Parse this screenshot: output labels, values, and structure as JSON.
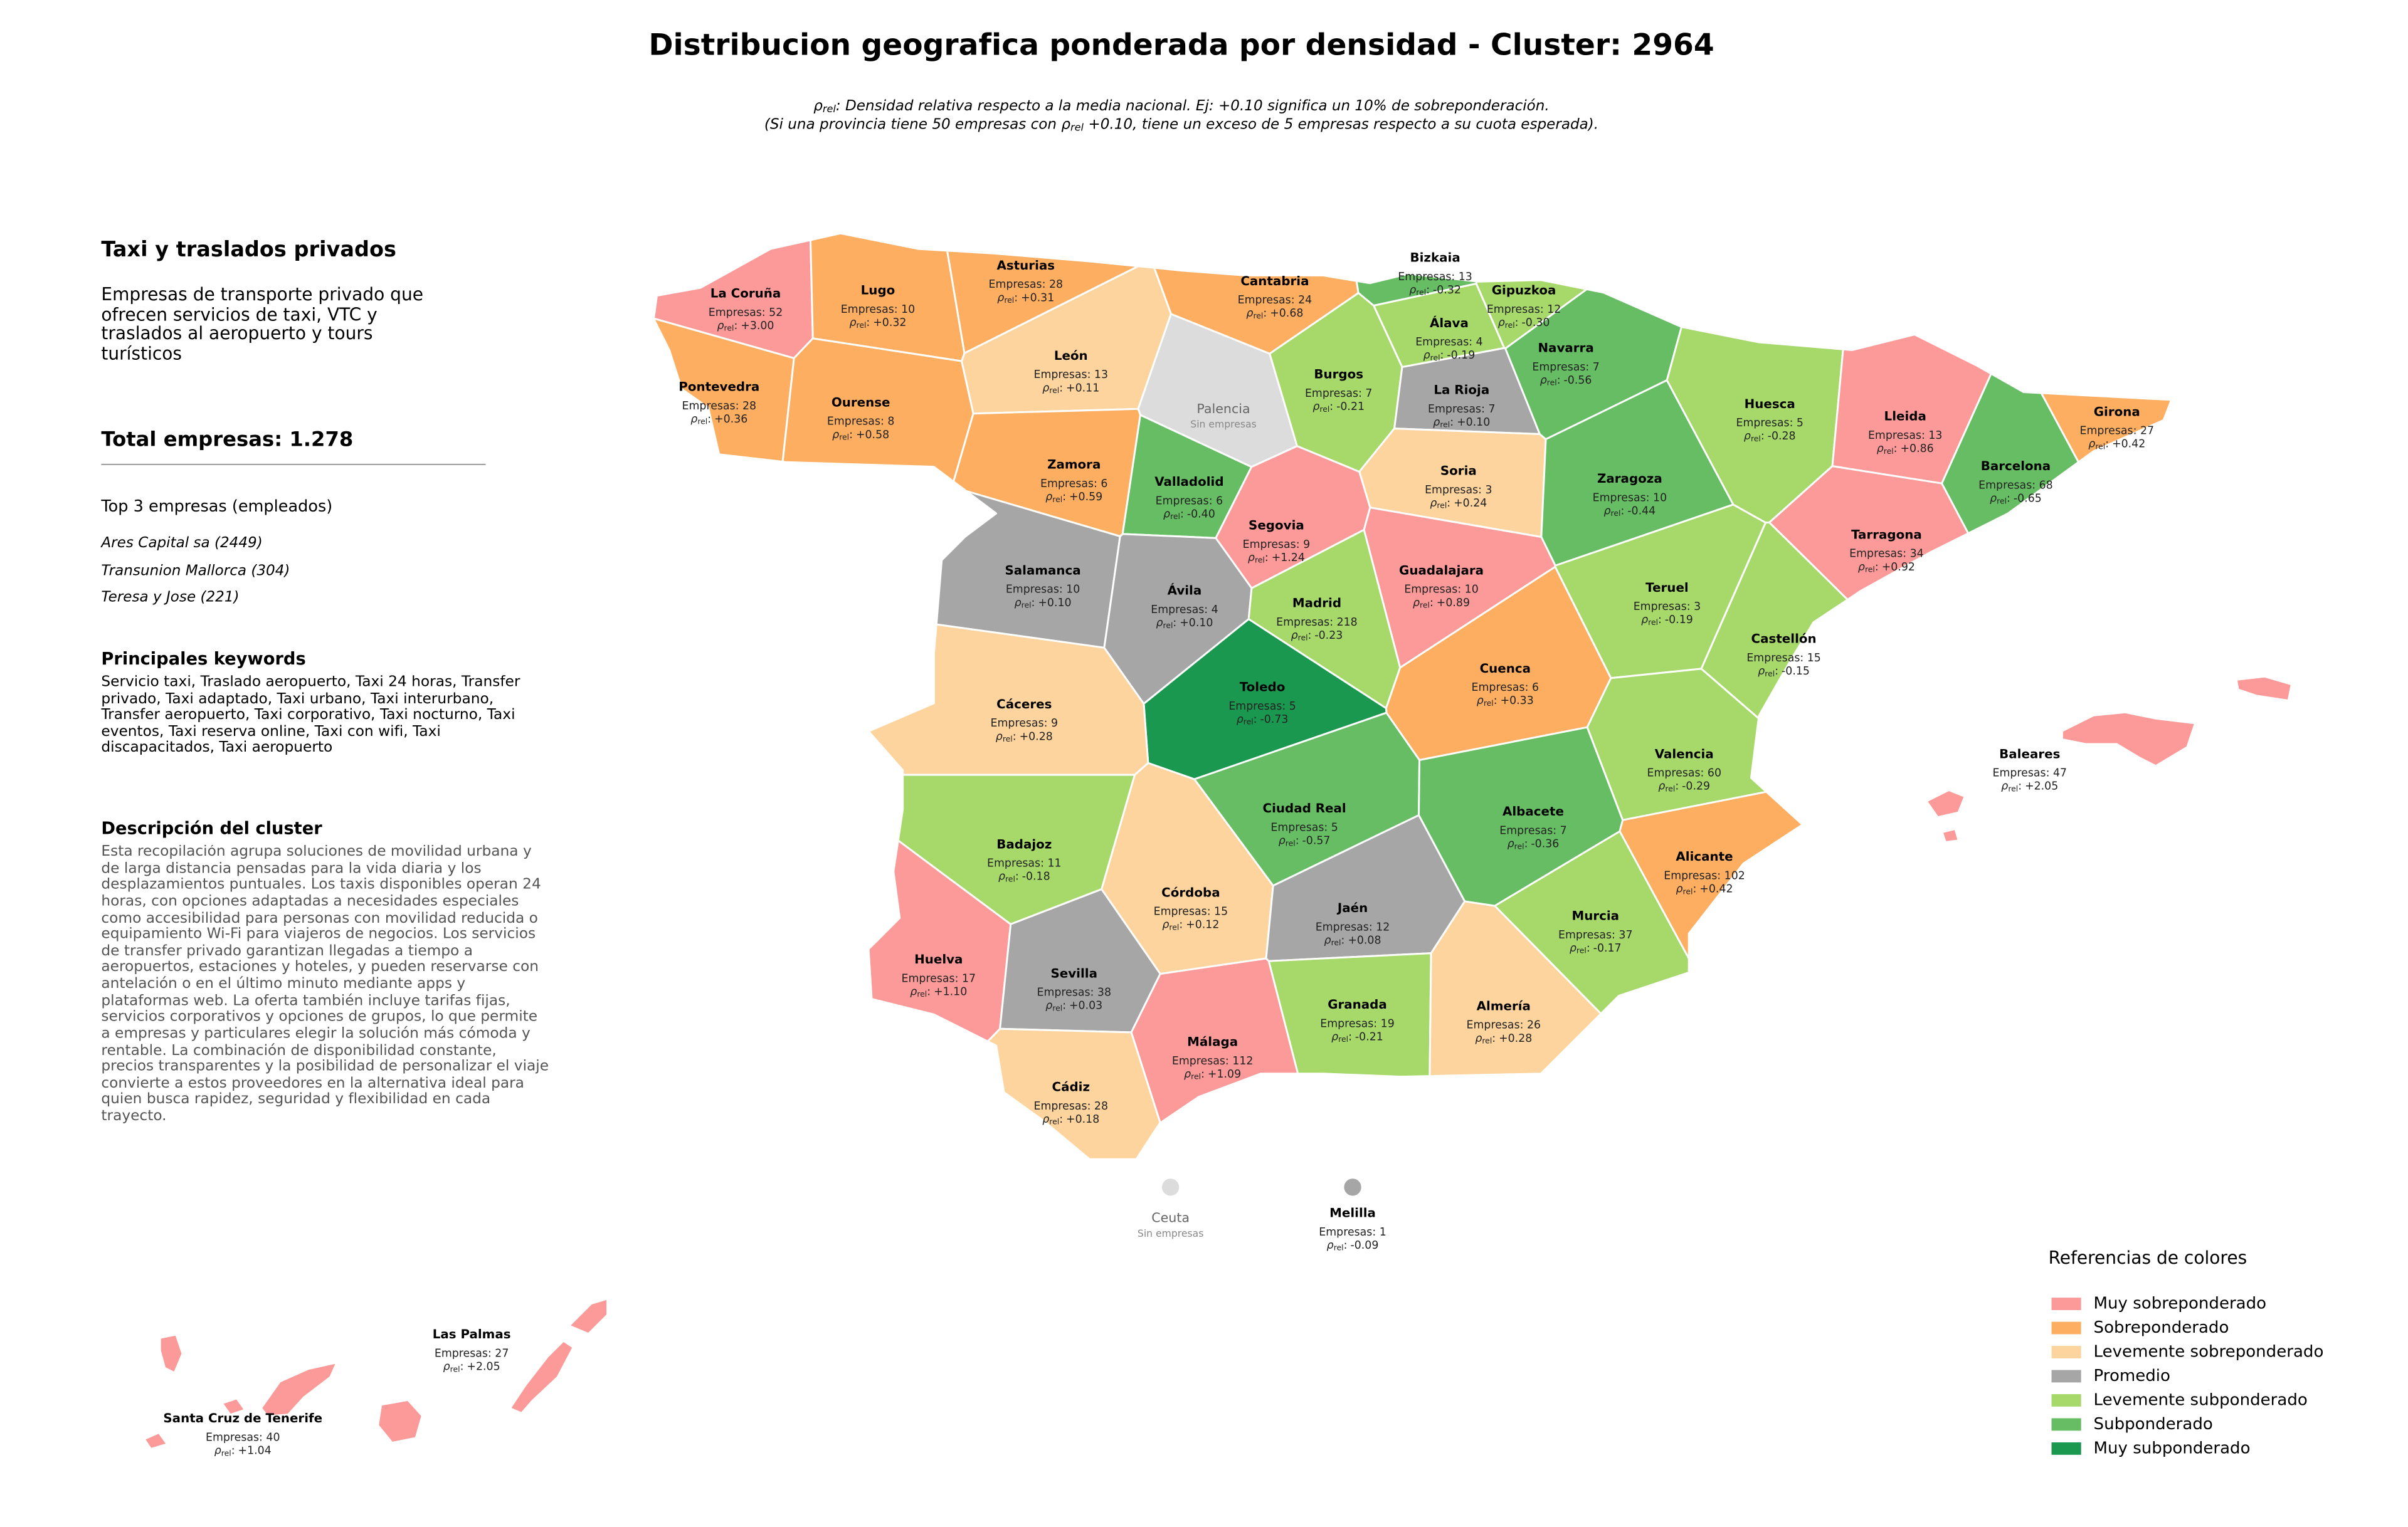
{
  "header": {
    "title": "Distribucion geografica ponderada por densidad - Cluster: 2964",
    "note_line1_text": ": Densidad relativa respecto a la media nacional. Ej: +0.10 significa un 10% de sobreponderación.",
    "note_line2_start": "(Si una provincia tiene 50 empresas con ",
    "note_line2_end": " +0.10, tiene un exceso de 5 empresas respecto a su cuota esperada)."
  },
  "panel": {
    "title": "Taxi y traslados privados",
    "description": "Empresas de transporte privado que ofrecen servicios de taxi, VTC y traslados al aeropuerto y tours turísticos",
    "total": "Total empresas: 1.278",
    "top_heading": "Top 3 empresas (empleados)",
    "top_companies": [
      "Ares Capital sa (2449)",
      "Transunion Mallorca (304)",
      "Teresa y Jose (221)"
    ],
    "keywords_heading": "Principales keywords",
    "keywords": "Servicio taxi, Traslado aeropuerto, Taxi 24 horas, Transfer privado, Taxi adaptado, Taxi urbano, Taxi interurbano, Transfer aeropuerto, Taxi corporativo, Taxi nocturno, Taxi eventos, Taxi reserva online, Taxi con wifi, Taxi discapacitados, Taxi aeropuerto",
    "cluster_heading": "Descripción del cluster",
    "cluster_description": "Esta recopilación agrupa soluciones de movilidad urbana y de larga distancia pensadas para la vida diaria y los desplazamientos puntuales. Los taxis disponibles operan 24 horas, con opciones adaptadas a necesidades especiales como accesibilidad para personas con movilidad reducida o equipamiento Wi-Fi para viajeros de negocios. Los servicios de transfer privado garantizan llegadas a tiempo a aeropuertos, estaciones y hoteles, y pueden reservarse con antelación o en el último minuto mediante apps y plataformas web. La oferta también incluye tarifas fijas, servicios corporativos y opciones de grupos, lo que permite a empresas y particulares elegir la solución más cómoda y rentable. La combinación de disponibilidad constante, precios transparentes y la posibilidad de personalizar el viaje convierte a estos proveedores en la alternativa ideal para quien busca rapidez, seguridad y flexibilidad en cada trayecto."
  },
  "map": {
    "rho_symbol": "ρ",
    "rho_subscript": "rel",
    "rho_separator": ":",
    "provinces": [
      {
        "name": "La Coruña",
        "empresas": "Empresas: 52",
        "rho": "+3.00",
        "color": "#fb9a99"
      },
      {
        "name": "Lugo",
        "empresas": "Empresas: 10",
        "rho": "+0.32",
        "color": "#fdae61"
      },
      {
        "name": "Asturias",
        "empresas": "Empresas: 28",
        "rho": "+0.31",
        "color": "#fdae61"
      },
      {
        "name": "Cantabria",
        "empresas": "Empresas: 24",
        "rho": "+0.68",
        "color": "#fdae61"
      },
      {
        "name": "Bizkaia",
        "empresas": "Empresas: 13",
        "rho": "-0.32",
        "color": "#66bd63"
      },
      {
        "name": "Gipuzkoa",
        "empresas": "Empresas: 12",
        "rho": "-0.30",
        "color": "#a6d96a"
      },
      {
        "name": "Álava",
        "empresas": "Empresas: 4",
        "rho": "-0.19",
        "color": "#a6d96a"
      },
      {
        "name": "Navarra",
        "empresas": "Empresas: 7",
        "rho": "-0.56",
        "color": "#66bd63"
      },
      {
        "name": "Pontevedra",
        "empresas": "Empresas: 28",
        "rho": "+0.36",
        "color": "#fdae61"
      },
      {
        "name": "Ourense",
        "empresas": "Empresas: 8",
        "rho": "+0.58",
        "color": "#fdae61"
      },
      {
        "name": "León",
        "empresas": "Empresas: 13",
        "rho": "+0.11",
        "color": "#fdd49e"
      },
      {
        "name": "Palencia",
        "empresas": "Sin empresas",
        "color": "#dcdcdc"
      },
      {
        "name": "Burgos",
        "empresas": "Empresas: 7",
        "rho": "-0.21",
        "color": "#a6d96a"
      },
      {
        "name": "La Rioja",
        "empresas": "Empresas: 7",
        "rho": "+0.10",
        "color": "#a6a6a6"
      },
      {
        "name": "Huesca",
        "empresas": "Empresas: 5",
        "rho": "-0.28",
        "color": "#a6d96a"
      },
      {
        "name": "Lleida",
        "empresas": "Empresas: 13",
        "rho": "+0.86",
        "color": "#fb9a99"
      },
      {
        "name": "Girona",
        "empresas": "Empresas: 27",
        "rho": "+0.42",
        "color": "#fdae61"
      },
      {
        "name": "Barcelona",
        "empresas": "Empresas: 68",
        "rho": "-0.65",
        "color": "#66bd63"
      },
      {
        "name": "Zamora",
        "empresas": "Empresas: 6",
        "rho": "+0.59",
        "color": "#fdae61"
      },
      {
        "name": "Valladolid",
        "empresas": "Empresas: 6",
        "rho": "-0.40",
        "color": "#66bd63"
      },
      {
        "name": "Soria",
        "empresas": "Empresas: 3",
        "rho": "+0.24",
        "color": "#fdd49e"
      },
      {
        "name": "Zaragoza",
        "empresas": "Empresas: 10",
        "rho": "-0.44",
        "color": "#66bd63"
      },
      {
        "name": "Tarragona",
        "empresas": "Empresas: 34",
        "rho": "+0.92",
        "color": "#fb9a99"
      },
      {
        "name": "Segovia",
        "empresas": "Empresas: 9",
        "rho": "+1.24",
        "color": "#fb9a99"
      },
      {
        "name": "Salamanca",
        "empresas": "Empresas: 10",
        "rho": "+0.10",
        "color": "#a6a6a6"
      },
      {
        "name": "Guadalajara",
        "empresas": "Empresas: 10",
        "rho": "+0.89",
        "color": "#fb9a99"
      },
      {
        "name": "Ávila",
        "empresas": "Empresas: 4",
        "rho": "+0.10",
        "color": "#a6a6a6"
      },
      {
        "name": "Madrid",
        "empresas": "Empresas: 218",
        "rho": "-0.23",
        "color": "#a6d96a"
      },
      {
        "name": "Teruel",
        "empresas": "Empresas: 3",
        "rho": "-0.19",
        "color": "#a6d96a"
      },
      {
        "name": "Castellón",
        "empresas": "Empresas: 15",
        "rho": "-0.15",
        "color": "#a6d96a"
      },
      {
        "name": "Cuenca",
        "empresas": "Empresas: 6",
        "rho": "+0.33",
        "color": "#fdae61"
      },
      {
        "name": "Toledo",
        "empresas": "Empresas: 5",
        "rho": "-0.73",
        "color": "#1a9850"
      },
      {
        "name": "Cáceres",
        "empresas": "Empresas: 9",
        "rho": "+0.28",
        "color": "#fdd49e"
      },
      {
        "name": "Valencia",
        "empresas": "Empresas: 60",
        "rho": "-0.29",
        "color": "#a6d96a"
      },
      {
        "name": "Ciudad Real",
        "empresas": "Empresas: 5",
        "rho": "-0.57",
        "color": "#66bd63"
      },
      {
        "name": "Albacete",
        "empresas": "Empresas: 7",
        "rho": "-0.36",
        "color": "#66bd63"
      },
      {
        "name": "Badajoz",
        "empresas": "Empresas: 11",
        "rho": "-0.18",
        "color": "#a6d96a"
      },
      {
        "name": "Alicante",
        "empresas": "Empresas: 102",
        "rho": "+0.42",
        "color": "#fdae61"
      },
      {
        "name": "Córdoba",
        "empresas": "Empresas: 15",
        "rho": "+0.12",
        "color": "#fdd49e"
      },
      {
        "name": "Jaén",
        "empresas": "Empresas: 12",
        "rho": "+0.08",
        "color": "#a6a6a6"
      },
      {
        "name": "Murcia",
        "empresas": "Empresas: 37",
        "rho": "-0.17",
        "color": "#a6d96a"
      },
      {
        "name": "Huelva",
        "empresas": "Empresas: 17",
        "rho": "+1.10",
        "color": "#fb9a99"
      },
      {
        "name": "Sevilla",
        "empresas": "Empresas: 38",
        "rho": "+0.03",
        "color": "#a6a6a6"
      },
      {
        "name": "Granada",
        "empresas": "Empresas: 19",
        "rho": "-0.21",
        "color": "#a6d96a"
      },
      {
        "name": "Almería",
        "empresas": "Empresas: 26",
        "rho": "+0.28",
        "color": "#fdd49e"
      },
      {
        "name": "Málaga",
        "empresas": "Empresas: 112",
        "rho": "+1.09",
        "color": "#fb9a99"
      },
      {
        "name": "Cádiz",
        "empresas": "Empresas: 28",
        "rho": "+0.18",
        "color": "#fdd49e"
      },
      {
        "name": "Baleares",
        "empresas": "Empresas: 47",
        "rho": "+2.05",
        "color": "#fb9a99"
      },
      {
        "name": "Ceuta",
        "empresas": "Sin empresas",
        "color": "#dcdcdc"
      },
      {
        "name": "Melilla",
        "empresas": "Empresas: 1",
        "rho": "-0.09",
        "color": "#a6a6a6"
      },
      {
        "name": "Las Palmas",
        "empresas": "Empresas: 27",
        "rho": "+2.05",
        "color": "#fb9a99"
      },
      {
        "name": "Santa Cruz de Tenerife",
        "empresas": "Empresas: 40",
        "rho": "+1.04",
        "color": "#fb9a99"
      }
    ]
  },
  "legend": {
    "title": "Referencias de colores",
    "items": [
      {
        "label": "Muy sobreponderado",
        "color": "#fb9a99"
      },
      {
        "label": "Sobreponderado",
        "color": "#fdae61"
      },
      {
        "label": "Levemente sobreponderado",
        "color": "#fdd49e"
      },
      {
        "label": "Promedio",
        "color": "#a6a6a6"
      },
      {
        "label": "Levemente subponderado",
        "color": "#a6d96a"
      },
      {
        "label": "Subponderado",
        "color": "#66bd63"
      },
      {
        "label": "Muy subponderado",
        "color": "#1a9850"
      }
    ]
  }
}
